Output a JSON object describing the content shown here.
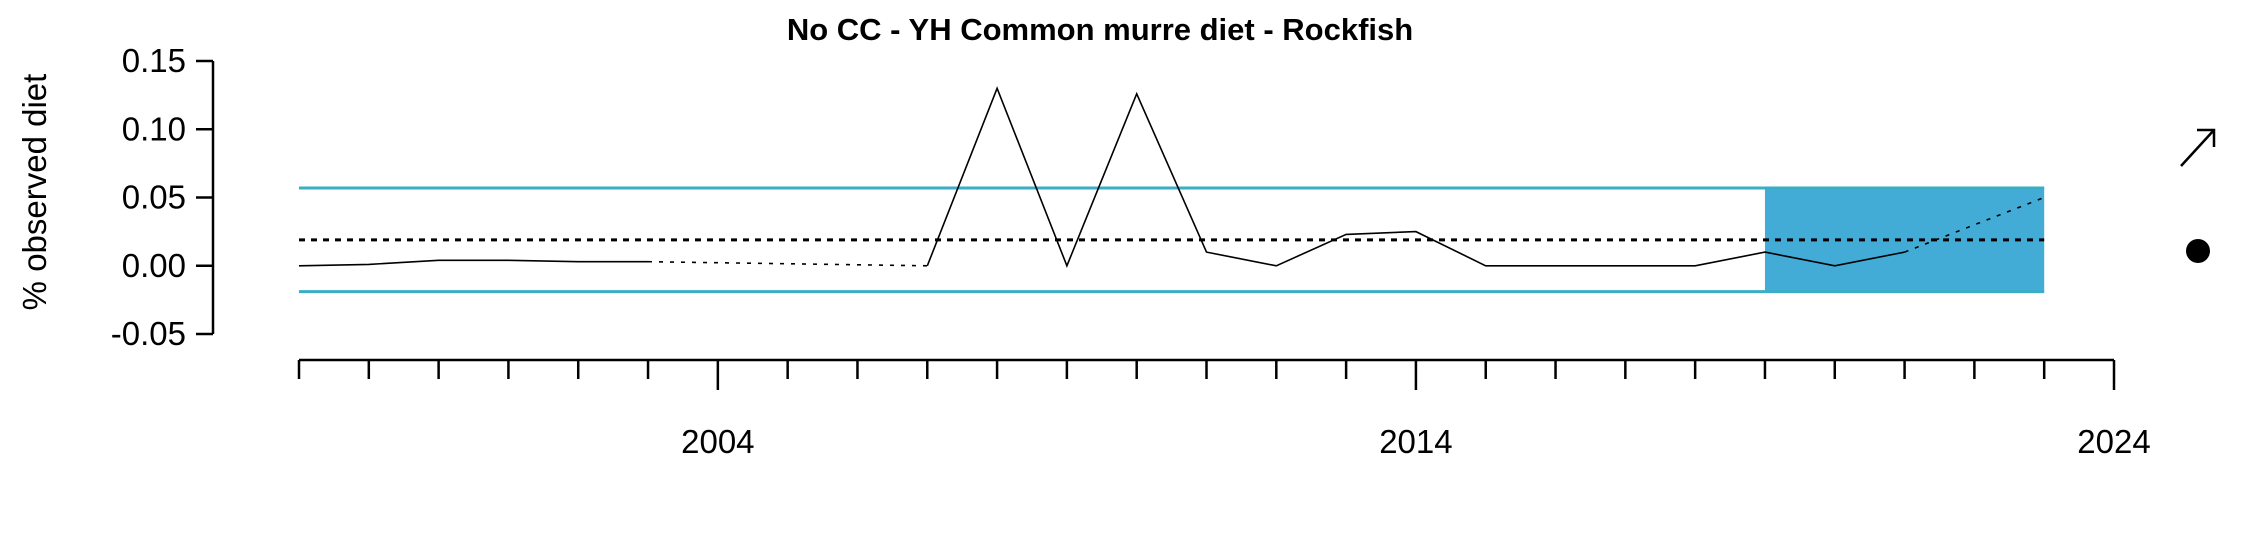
{
  "chart_data": {
    "type": "line",
    "title": "No CC - YH Common murre diet - Rockfish",
    "xlabel": "",
    "ylabel": "% observed diet",
    "xlim": [
      1998,
      2024
    ],
    "ylim": [
      -0.05,
      0.15
    ],
    "x_tick_labels": [
      "2004",
      "2014",
      "2024"
    ],
    "y_tick_labels": [
      "-0.05",
      "0.00",
      "0.05",
      "0.10",
      "0.15"
    ],
    "y_ticks": [
      -0.05,
      0.0,
      0.05,
      0.1,
      0.15
    ],
    "mean": 0.019,
    "upper_sd": 0.057,
    "lower_sd": -0.019,
    "shaded_period": [
      2019,
      2023
    ],
    "segments": [
      {
        "style": "solid",
        "x": [
          1998,
          1999,
          2000,
          2001,
          2002,
          2003
        ],
        "y": [
          0.0,
          0.001,
          0.004,
          0.004,
          0.003,
          0.003
        ]
      },
      {
        "style": "dotted",
        "x": [
          2003,
          2007
        ],
        "y": [
          0.003,
          0.0
        ]
      },
      {
        "style": "solid",
        "x": [
          2007,
          2008,
          2009,
          2010,
          2011,
          2012,
          2013,
          2014,
          2015,
          2016,
          2017,
          2018,
          2019,
          2020,
          2021
        ],
        "y": [
          0.0,
          0.13,
          0.0,
          0.126,
          0.01,
          0.0,
          0.023,
          0.025,
          0.0,
          0.0,
          0.0,
          0.0,
          0.01,
          0.0,
          0.01
        ]
      },
      {
        "style": "dotted",
        "x": [
          2021,
          2023
        ],
        "y": [
          0.01,
          0.05
        ]
      }
    ],
    "trend_symbol": "arrow-up-right-icon",
    "mean_symbol": "filled-circle-icon",
    "colors": {
      "band": "#3aaec6",
      "shade": "#42acd6",
      "line": "#000000"
    }
  }
}
